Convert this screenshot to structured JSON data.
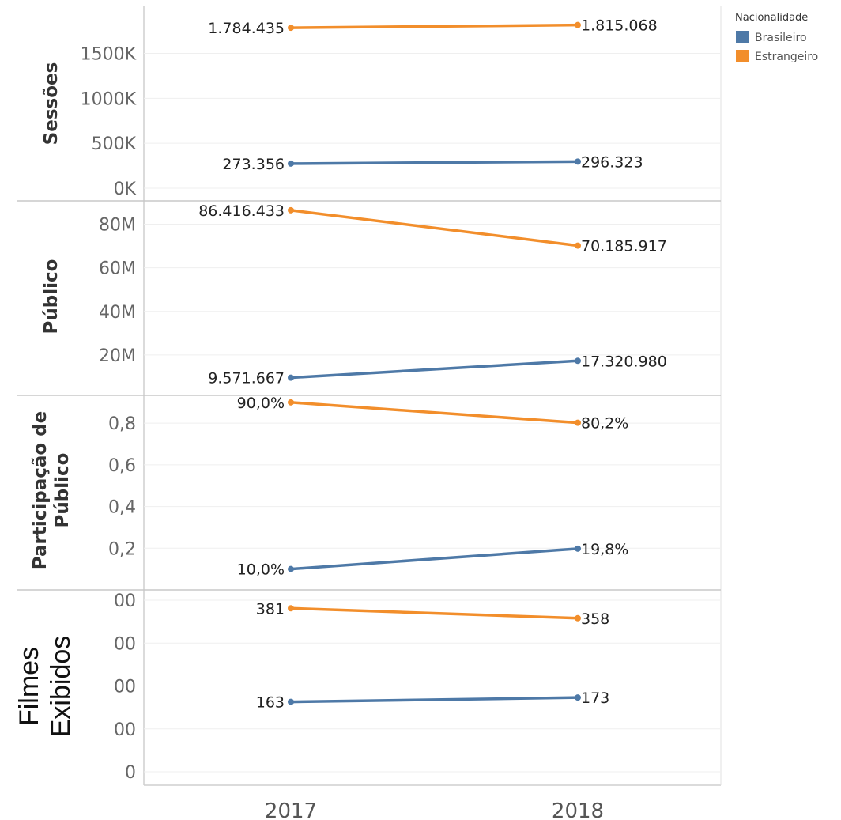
{
  "legend": {
    "title": "Nacionalidade",
    "items": [
      {
        "name": "Brasileiro",
        "color": "#4e79a7"
      },
      {
        "name": "Estrangeiro",
        "color": "#f28e2b"
      }
    ]
  },
  "chart_data": {
    "type": "line",
    "x": [
      "2017",
      "2018"
    ],
    "legend_position": "top-right",
    "grid": true,
    "panels": [
      {
        "ylabel": [
          "Sessões"
        ],
        "ylim": [
          0,
          1900000
        ],
        "yticks": [
          {
            "value": 0,
            "label": "0K"
          },
          {
            "value": 500000,
            "label": "500K"
          },
          {
            "value": 1000000,
            "label": "1000K"
          },
          {
            "value": 1500000,
            "label": "1500K"
          }
        ],
        "series": [
          {
            "name": "Brasileiro",
            "values": [
              273356,
              296323
            ],
            "labels": [
              "273.356",
              "296.323"
            ]
          },
          {
            "name": "Estrangeiro",
            "values": [
              1784435,
              1815068
            ],
            "labels": [
              "1.784.435",
              "1.815.068"
            ]
          }
        ]
      },
      {
        "ylabel": [
          "Público"
        ],
        "ylim": [
          0,
          90000000
        ],
        "yticks": [
          {
            "value": 20000000,
            "label": "20M"
          },
          {
            "value": 40000000,
            "label": "40M"
          },
          {
            "value": 60000000,
            "label": "60M"
          },
          {
            "value": 80000000,
            "label": "80M"
          }
        ],
        "series": [
          {
            "name": "Brasileiro",
            "values": [
              9571667,
              17320980
            ],
            "labels": [
              "9.571.667",
              "17.320.980"
            ]
          },
          {
            "name": "Estrangeiro",
            "values": [
              86416433,
              70185917
            ],
            "labels": [
              "86.416.433",
              "70.185.917"
            ]
          }
        ]
      },
      {
        "ylabel": [
          "Participação de",
          "Público"
        ],
        "ylim": [
          0,
          0.96
        ],
        "yticks": [
          {
            "value": 0.2,
            "label": "0,2"
          },
          {
            "value": 0.4,
            "label": "0,4"
          },
          {
            "value": 0.6,
            "label": "0,6"
          },
          {
            "value": 0.8,
            "label": "0,8"
          }
        ],
        "series": [
          {
            "name": "Brasileiro",
            "values": [
              0.1,
              0.198
            ],
            "labels": [
              "10,0%",
              "19,8%"
            ]
          },
          {
            "name": "Estrangeiro",
            "values": [
              0.9,
              0.802
            ],
            "labels": [
              "90,0%",
              "80,2%"
            ]
          }
        ]
      },
      {
        "ylabel": [
          "Filmes",
          "Exibidos"
        ],
        "ylim": [
          0,
          400
        ],
        "yticks": [
          {
            "value": 0,
            "label": "0"
          },
          {
            "value": 100,
            "label": "00"
          },
          {
            "value": 200,
            "label": "00"
          },
          {
            "value": 300,
            "label": "00"
          },
          {
            "value": 400,
            "label": "00"
          }
        ],
        "series": [
          {
            "name": "Brasileiro",
            "values": [
              163,
              173
            ],
            "labels": [
              "163",
              "173"
            ]
          },
          {
            "name": "Estrangeiro",
            "values": [
              381,
              358
            ],
            "labels": [
              "381",
              "358"
            ]
          }
        ]
      }
    ]
  }
}
